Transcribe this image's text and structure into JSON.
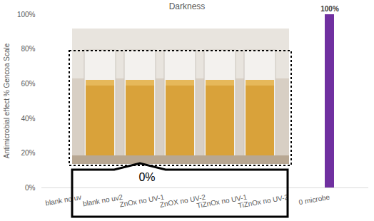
{
  "chart_data": {
    "type": "bar",
    "title": "Darkness",
    "y_label": "Antimicrobial effect % Gencoa Scale",
    "categories": [
      "blank no uv",
      "blank no uv2",
      "ZnOx no UV-1",
      "ZnOX no UV-2",
      "TiZnOx no UV-1",
      "TiZnOx no UV-2",
      "0 microbe"
    ],
    "values": [
      0,
      0,
      0,
      0,
      0,
      0,
      100
    ],
    "color": "#7030a0",
    "data_labels": true,
    "value_labels": [
      null,
      null,
      null,
      null,
      null,
      null,
      "100%"
    ],
    "ylim": [
      0,
      100
    ],
    "yticks": [
      {
        "value": 0,
        "label": "0%"
      },
      {
        "value": 20,
        "label": "20%"
      },
      {
        "value": 40,
        "label": "40%"
      },
      {
        "value": 60,
        "label": "60%"
      },
      {
        "value": 80,
        "label": "80%"
      },
      {
        "value": 100,
        "label": "100%"
      }
    ],
    "grid": false,
    "annotations": [
      {
        "text": "0%"
      }
    ]
  }
}
